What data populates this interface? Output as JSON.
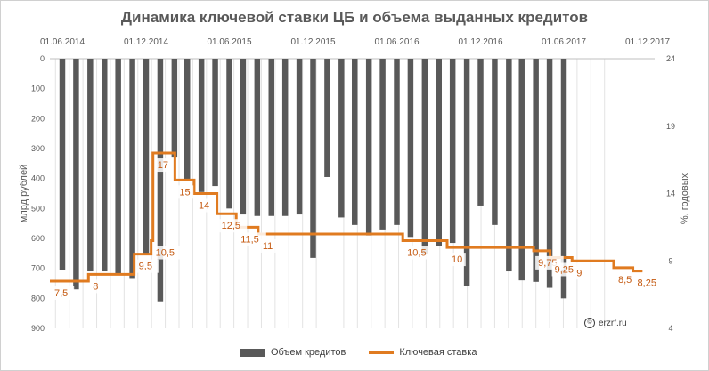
{
  "chart_data": {
    "type": "bar+line",
    "title": "Динамика ключевой ставки ЦБ и объема выданных кредитов",
    "ylabel_left": "млрд рублей",
    "ylabel_right": "%, годовых",
    "left_axis": {
      "min": 0,
      "max": 900,
      "inverted": true,
      "ticks": [
        "0",
        "100",
        "200",
        "300",
        "400",
        "500",
        "600",
        "700",
        "800",
        "900"
      ]
    },
    "right_axis": {
      "min": 4,
      "max": 24,
      "ticks": [
        "4",
        "9",
        "14",
        "19",
        "24"
      ]
    },
    "x_axis": {
      "position": "top",
      "ticks": [
        "01.06.2014",
        "01.12.2014",
        "01.06.2015",
        "01.12.2015",
        "01.06.2016",
        "01.12.2016",
        "01.06.2017",
        "01.12.2017"
      ]
    },
    "grid": true,
    "legend_position": "bottom",
    "colors": {
      "bars": "#595959",
      "line": "#e07b20",
      "labels": "#c55a11"
    },
    "series": [
      {
        "name": "Объем кредитов",
        "type": "bar",
        "dates": [
          "01.06.2014",
          "01.07.2014",
          "01.08.2014",
          "01.09.2014",
          "01.10.2014",
          "01.11.2014",
          "01.12.2014",
          "01.01.2015",
          "01.02.2015",
          "01.03.2015",
          "01.04.2015",
          "01.05.2015",
          "01.06.2015",
          "01.07.2015",
          "01.08.2015",
          "01.09.2015",
          "01.10.2015",
          "01.11.2015",
          "01.12.2015",
          "01.01.2016",
          "01.02.2016",
          "01.03.2016",
          "01.04.2016",
          "01.05.2016",
          "01.06.2016",
          "01.07.2016",
          "01.08.2016",
          "01.09.2016",
          "01.10.2016",
          "01.11.2016",
          "01.12.2016",
          "01.01.2017",
          "01.02.2017",
          "01.03.2017",
          "01.04.2017",
          "01.05.2017",
          "01.06.2017",
          "01.07.2017",
          "01.08.2017"
        ],
        "values": [
          705,
          770,
          710,
          710,
          720,
          735,
          650,
          810,
          330,
          405,
          445,
          425,
          500,
          520,
          525,
          525,
          525,
          520,
          665,
          395,
          530,
          555,
          590,
          570,
          555,
          595,
          650,
          625,
          615,
          760,
          490,
          555,
          710,
          740,
          745,
          765,
          800,
          0,
          0
        ]
      },
      {
        "name": "Ключевая ставка",
        "type": "step-line",
        "steps": [
          {
            "from": "01.05.2014",
            "to": "28.07.2014",
            "value": 7.5,
            "label": "7,5"
          },
          {
            "from": "28.07.2014",
            "to": "05.11.2014",
            "value": 8,
            "label": "8"
          },
          {
            "from": "05.11.2014",
            "to": "12.12.2014",
            "value": 9.5,
            "label": "9,5"
          },
          {
            "from": "12.12.2014",
            "to": "16.12.2014",
            "value": 10.5,
            "label": "10,5"
          },
          {
            "from": "16.12.2014",
            "to": "02.02.2015",
            "value": 17,
            "label": "17"
          },
          {
            "from": "02.02.2015",
            "to": "16.03.2015",
            "value": 15,
            "label": "15"
          },
          {
            "from": "16.03.2015",
            "to": "05.05.2015",
            "value": 14,
            "label": "14"
          },
          {
            "from": "05.05.2015",
            "to": "16.06.2015",
            "value": 12.5,
            "label": "12,5"
          },
          {
            "from": "16.06.2015",
            "to": "03.08.2015",
            "value": 11.5,
            "label": "11,5"
          },
          {
            "from": "03.08.2015",
            "to": "14.06.2016",
            "value": 11,
            "label": "11"
          },
          {
            "from": "14.06.2016",
            "to": "19.09.2016",
            "value": 10.5,
            "label": "10,5"
          },
          {
            "from": "19.09.2016",
            "to": "27.03.2017",
            "value": 10,
            "label": "10"
          },
          {
            "from": "27.03.2017",
            "to": "02.05.2017",
            "value": 9.75,
            "label": "9,75"
          },
          {
            "from": "02.05.2017",
            "to": "19.06.2017",
            "value": 9.25,
            "label": "9,25"
          },
          {
            "from": "19.06.2017",
            "to": "18.09.2017",
            "value": 9,
            "label": "9"
          },
          {
            "from": "18.09.2017",
            "to": "30.10.2017",
            "value": 8.5,
            "label": "8,5"
          },
          {
            "from": "30.10.2017",
            "to": "20.11.2017",
            "value": 8.25,
            "label": "8,25"
          }
        ]
      }
    ]
  },
  "watermark": {
    "icon": "copyright-icon",
    "icon_glyph": "©",
    "text": "erzrf.ru"
  }
}
